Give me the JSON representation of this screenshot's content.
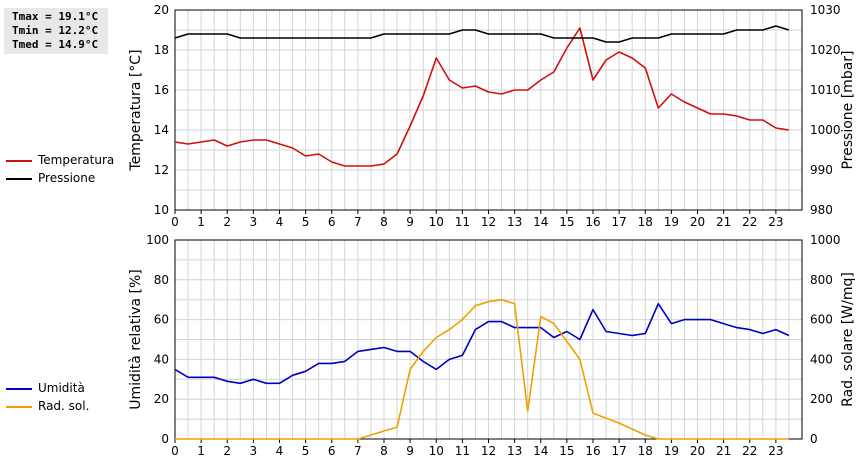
{
  "stats": {
    "tmax": "Tmax = 19.1°C",
    "tmin": "Tmin = 12.2°C",
    "tmed": "Tmed = 14.9°C"
  },
  "colors": {
    "temperature": "#d01010",
    "pressure": "#000000",
    "humidity": "#0000c0",
    "radiation": "#f0a000",
    "grid": "#d4d4d4"
  },
  "legend_top": [
    {
      "label": "Temperatura",
      "color": "#d01010"
    },
    {
      "label": "Pressione",
      "color": "#000000"
    }
  ],
  "legend_bottom": [
    {
      "label": "Umidità",
      "color": "#0000c0"
    },
    {
      "label": "Rad. sol.",
      "color": "#f0a000"
    }
  ],
  "chart_data": [
    {
      "type": "line",
      "xlabel": "",
      "x_ticks": [
        "0",
        "1",
        "2",
        "3",
        "4",
        "5",
        "6",
        "7",
        "8",
        "9",
        "10",
        "11",
        "12",
        "13",
        "14",
        "15",
        "16",
        "17",
        "18",
        "19",
        "20",
        "21",
        "22",
        "23"
      ],
      "xlim": [
        0,
        24
      ],
      "grid": true,
      "left_axis": {
        "label": "Temperatura [°C]",
        "lim": [
          10,
          20
        ],
        "ticks": [
          "10",
          "12",
          "14",
          "16",
          "18",
          "20"
        ]
      },
      "right_axis": {
        "label": "Pressione [mbar]",
        "lim": [
          980,
          1030
        ],
        "ticks": [
          "980",
          "990",
          "1000",
          "1010",
          "1020",
          "1030"
        ]
      },
      "series": [
        {
          "name": "Temperatura",
          "axis": "left",
          "color": "#d01010",
          "x": [
            0,
            0.5,
            1,
            1.5,
            2,
            2.5,
            3,
            3.5,
            4,
            4.5,
            5,
            5.5,
            6,
            6.5,
            7,
            7.5,
            8,
            8.5,
            9,
            9.5,
            10,
            10.5,
            11,
            11.5,
            12,
            12.5,
            13,
            13.5,
            14,
            14.5,
            15,
            15.5,
            16,
            16.5,
            17,
            17.5,
            18,
            18.5,
            19,
            19.5,
            20,
            20.5,
            21,
            21.5,
            22,
            22.5,
            23,
            23.5
          ],
          "values": [
            13.4,
            13.3,
            13.4,
            13.5,
            13.2,
            13.4,
            13.5,
            13.5,
            13.3,
            13.1,
            12.7,
            12.8,
            12.4,
            12.2,
            12.2,
            12.2,
            12.3,
            12.8,
            14.2,
            15.7,
            17.6,
            16.5,
            16.1,
            16.2,
            15.9,
            15.8,
            16.0,
            16.0,
            16.5,
            16.9,
            18.1,
            19.1,
            16.5,
            17.5,
            17.9,
            17.6,
            17.1,
            15.1,
            15.8,
            15.4,
            15.1,
            14.8,
            14.8,
            14.7,
            14.5,
            14.5,
            14.1,
            14.0
          ]
        },
        {
          "name": "Pressione",
          "axis": "right",
          "color": "#000000",
          "x": [
            0,
            0.5,
            1,
            1.5,
            2,
            2.5,
            3,
            3.5,
            4,
            4.5,
            5,
            5.5,
            6,
            6.5,
            7,
            7.5,
            8,
            8.5,
            9,
            9.5,
            10,
            10.5,
            11,
            11.5,
            12,
            12.5,
            13,
            13.5,
            14,
            14.5,
            15,
            15.5,
            16,
            16.5,
            17,
            17.5,
            18,
            18.5,
            19,
            19.5,
            20,
            20.5,
            21,
            21.5,
            22,
            22.5,
            23,
            23.5
          ],
          "values": [
            1023,
            1024,
            1024,
            1024,
            1024,
            1023,
            1023,
            1023,
            1023,
            1023,
            1023,
            1023,
            1023,
            1023,
            1023,
            1023,
            1024,
            1024,
            1024,
            1024,
            1024,
            1024,
            1025,
            1025,
            1024,
            1024,
            1024,
            1024,
            1024,
            1023,
            1023,
            1023,
            1023,
            1022,
            1022,
            1023,
            1023,
            1023,
            1024,
            1024,
            1024,
            1024,
            1024,
            1025,
            1025,
            1025,
            1026,
            1025
          ]
        }
      ]
    },
    {
      "type": "line",
      "xlabel": "",
      "x_ticks": [
        "0",
        "1",
        "2",
        "3",
        "4",
        "5",
        "6",
        "7",
        "8",
        "9",
        "10",
        "11",
        "12",
        "13",
        "14",
        "15",
        "16",
        "17",
        "18",
        "19",
        "20",
        "21",
        "22",
        "23"
      ],
      "xlim": [
        0,
        24
      ],
      "grid": true,
      "left_axis": {
        "label": "Umidità relativa [%]",
        "lim": [
          0,
          100
        ],
        "ticks": [
          "0",
          "20",
          "40",
          "60",
          "80",
          "100"
        ]
      },
      "right_axis": {
        "label": "Rad. solare [W/mq]",
        "lim": [
          0,
          1000
        ],
        "ticks": [
          "0",
          "200",
          "400",
          "600",
          "800",
          "1000"
        ]
      },
      "series": [
        {
          "name": "Umidità",
          "axis": "left",
          "color": "#0000c0",
          "x": [
            0,
            0.5,
            1,
            1.5,
            2,
            2.5,
            3,
            3.5,
            4,
            4.5,
            5,
            5.5,
            6,
            6.5,
            7,
            7.5,
            8,
            8.5,
            9,
            9.5,
            10,
            10.5,
            11,
            11.5,
            12,
            12.5,
            13,
            13.5,
            14,
            14.5,
            15,
            15.5,
            16,
            16.5,
            17,
            17.5,
            18,
            18.5,
            19,
            19.5,
            20,
            20.5,
            21,
            21.5,
            22,
            22.5,
            23,
            23.5
          ],
          "values": [
            35,
            31,
            31,
            31,
            29,
            28,
            30,
            28,
            28,
            32,
            34,
            38,
            38,
            39,
            44,
            45,
            46,
            44,
            44,
            39,
            35,
            40,
            42,
            55,
            59,
            59,
            56,
            56,
            56,
            51,
            54,
            50,
            65,
            54,
            53,
            52,
            53,
            68,
            58,
            60,
            60,
            60,
            58,
            56,
            55,
            53,
            55,
            52
          ]
        },
        {
          "name": "Rad. sol.",
          "axis": "right",
          "color": "#f0a000",
          "x": [
            0,
            0.5,
            1,
            1.5,
            2,
            2.5,
            3,
            3.5,
            4,
            4.5,
            5,
            5.5,
            6,
            6.5,
            7,
            7.5,
            8,
            8.5,
            9,
            9.5,
            10,
            10.5,
            11,
            11.5,
            12,
            12.5,
            13,
            13.5,
            14,
            14.5,
            15,
            15.5,
            16,
            16.5,
            17,
            17.5,
            18,
            18.5,
            19,
            19.5,
            20,
            20.5,
            21,
            21.5,
            22,
            22.5,
            23,
            23.5
          ],
          "values": [
            0,
            0,
            0,
            0,
            0,
            0,
            0,
            0,
            0,
            0,
            0,
            0,
            0,
            0,
            0,
            20,
            40,
            60,
            350,
            440,
            510,
            550,
            600,
            670,
            690,
            700,
            680,
            140,
            615,
            580,
            490,
            400,
            130,
            105,
            80,
            50,
            20,
            0,
            0,
            0,
            0,
            0,
            0,
            0,
            0,
            0,
            0,
            0
          ]
        }
      ]
    }
  ]
}
